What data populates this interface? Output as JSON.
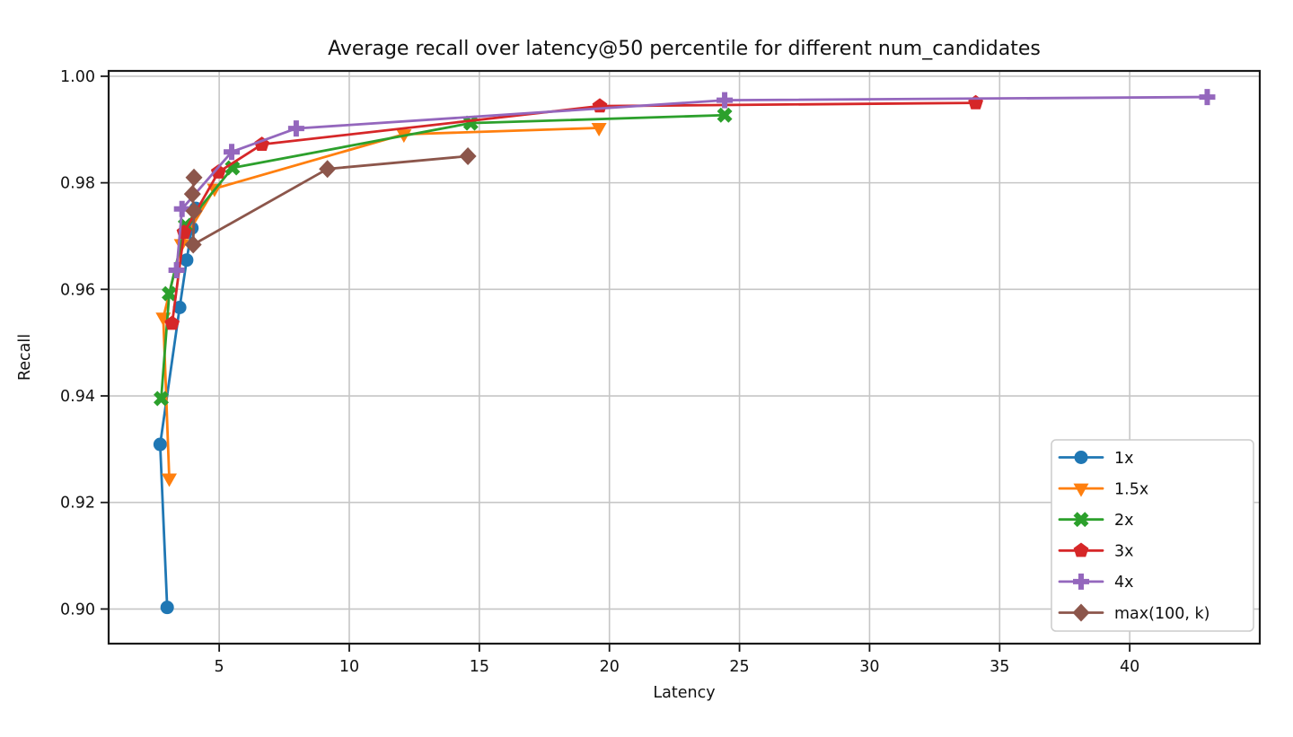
{
  "figure": {
    "title": "Average recall over latency@50 percentile for different num_candidates",
    "xlabel": "Latency",
    "ylabel": "Recall"
  },
  "chart_data": {
    "type": "line",
    "title": "Average recall over latency@50 percentile for different num_candidates",
    "xlabel": "Latency",
    "ylabel": "Recall",
    "xlim": [
      0.75,
      45
    ],
    "ylim": [
      0.8935,
      1.001
    ],
    "x_ticks": [
      5,
      10,
      15,
      20,
      25,
      30,
      35,
      40
    ],
    "y_ticks": [
      0.9,
      0.92,
      0.94,
      0.96,
      0.98,
      1.0
    ],
    "grid": true,
    "grid_color": "#c6c6c6",
    "spine_color": "#1a1a1a",
    "legend_position": "lower right",
    "series": [
      {
        "name": "1x",
        "color": "#1f77b4",
        "marker": "circle",
        "points": [
          [
            3.0,
            0.9003
          ],
          [
            2.73,
            0.9309
          ],
          [
            3.48,
            0.9566
          ],
          [
            3.75,
            0.9655
          ],
          [
            3.95,
            0.9715
          ],
          [
            4.1,
            0.9752
          ]
        ]
      },
      {
        "name": "1.5x",
        "color": "#ff7f0e",
        "marker": "triangle-down",
        "points": [
          [
            3.08,
            0.9245
          ],
          [
            2.85,
            0.9547
          ],
          [
            3.55,
            0.9685
          ],
          [
            4.82,
            0.9789
          ],
          [
            12.1,
            0.9891
          ],
          [
            19.6,
            0.9903
          ]
        ]
      },
      {
        "name": "2x",
        "color": "#2ca02c",
        "marker": "x-filled",
        "points": [
          [
            2.77,
            0.9395
          ],
          [
            3.08,
            0.9592
          ],
          [
            3.7,
            0.972
          ],
          [
            5.51,
            0.9828
          ],
          [
            14.67,
            0.9912
          ],
          [
            24.43,
            0.9927
          ]
        ]
      },
      {
        "name": "3x",
        "color": "#d62728",
        "marker": "pentagon",
        "points": [
          [
            3.19,
            0.9536
          ],
          [
            3.65,
            0.9707
          ],
          [
            4.97,
            0.982
          ],
          [
            6.64,
            0.9872
          ],
          [
            19.63,
            0.9944
          ],
          [
            34.08,
            0.995
          ]
        ]
      },
      {
        "name": "4x",
        "color": "#9467bd",
        "marker": "plus-filled",
        "points": [
          [
            3.36,
            0.9636
          ],
          [
            3.57,
            0.9751
          ],
          [
            5.48,
            0.9858
          ],
          [
            7.96,
            0.9902
          ],
          [
            24.43,
            0.9955
          ],
          [
            42.98,
            0.9961
          ]
        ]
      },
      {
        "name": "max(100, k)",
        "color": "#8c564b",
        "marker": "diamond",
        "points": [
          [
            4.03,
            0.981
          ],
          [
            3.97,
            0.9779
          ],
          [
            4.03,
            0.9747
          ],
          [
            4.0,
            0.9684
          ],
          [
            9.16,
            0.9826
          ],
          [
            14.56,
            0.985
          ]
        ]
      }
    ]
  }
}
